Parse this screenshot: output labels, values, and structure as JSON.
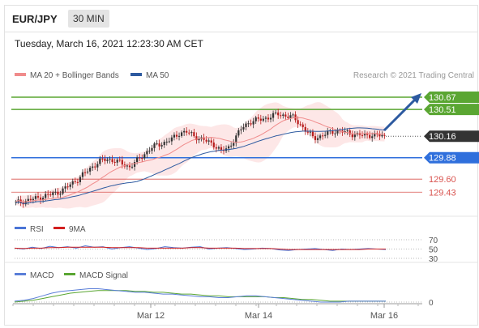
{
  "header": {
    "symbol": "EUR/JPY",
    "timeframe": "30 MIN"
  },
  "datetime": "Tuesday, March 16, 2021 12:23:30 AM CET",
  "legend": {
    "ma20": "MA 20 + Bollinger Bands",
    "ma50": "MA 50",
    "rsi": "RSI",
    "rsi9": "9MA",
    "macd": "MACD",
    "macd_signal": "MACD Signal"
  },
  "credit": "Research © 2021 Trading Central",
  "colors": {
    "resistance": "#5aa632",
    "pivot": "#2f6fdc",
    "support": "#d9534f",
    "ma20": "#f08b8b",
    "ma50": "#2d5aa0",
    "band_fill": "#fde3e3",
    "candle_up": "#333333",
    "candle_down": "#b71c1c",
    "rsi": "#4a74d6",
    "rsi9": "#d21f1f",
    "macd": "#5a7ed8",
    "signal": "#5aa632",
    "last_price_tag": "#333333"
  },
  "chart_data": [
    {
      "type": "line",
      "title": "EUR/JPY 30 MIN",
      "x_labels": [
        "Mar 12",
        "Mar 14",
        "Mar 16"
      ],
      "ylim": [
        129.2,
        130.85
      ],
      "levels": [
        {
          "name": "resistance_2",
          "value": 130.67,
          "label": "130.67",
          "kind": "resistance"
        },
        {
          "name": "resistance_1",
          "value": 130.51,
          "label": "130.51",
          "kind": "resistance"
        },
        {
          "name": "last_price",
          "value": 130.16,
          "label": "130.16",
          "kind": "last"
        },
        {
          "name": "pivot",
          "value": 129.88,
          "label": "129.88",
          "kind": "pivot"
        },
        {
          "name": "support_1",
          "value": 129.6,
          "label": "129.60",
          "kind": "support"
        },
        {
          "name": "support_2",
          "value": 129.43,
          "label": "129.43",
          "kind": "support"
        }
      ],
      "close": [
        129.29,
        129.31,
        129.33,
        129.35,
        129.38,
        129.4,
        129.43,
        129.48,
        129.55,
        129.62,
        129.7,
        129.78,
        129.84,
        129.86,
        129.84,
        129.8,
        129.76,
        129.83,
        129.92,
        130.0,
        130.05,
        130.08,
        130.12,
        130.2,
        130.22,
        130.17,
        130.13,
        130.09,
        130.05,
        129.96,
        130.01,
        130.15,
        130.28,
        130.35,
        130.37,
        130.39,
        130.42,
        130.45,
        130.43,
        130.41,
        130.33,
        130.22,
        130.14,
        130.16,
        130.2,
        130.23,
        130.22,
        130.2,
        130.18,
        130.17,
        130.18,
        130.17,
        130.16
      ]
    },
    {
      "type": "line",
      "title": "RSI",
      "ylim": [
        30,
        70
      ],
      "ticks": [
        30,
        50,
        70
      ],
      "series": [
        {
          "name": "RSI",
          "values": [
            52,
            50,
            54,
            51,
            56,
            53,
            55,
            52,
            57,
            54,
            55,
            50,
            53,
            55,
            52,
            49,
            51,
            55,
            53,
            52,
            54,
            55,
            50,
            52,
            53,
            51,
            49,
            50,
            52,
            51,
            48,
            47,
            49,
            50,
            51,
            49,
            47,
            50,
            49,
            50,
            51,
            50,
            49
          ]
        },
        {
          "name": "9MA",
          "values": [
            52,
            51,
            52,
            52,
            53,
            53,
            54,
            54,
            54,
            54,
            54,
            53,
            53,
            53,
            53,
            52,
            52,
            52,
            52,
            52,
            53,
            53,
            52,
            52,
            52,
            52,
            51,
            51,
            51,
            51,
            50,
            49,
            49,
            49,
            49,
            49,
            49,
            49,
            49,
            49,
            50,
            50,
            50
          ]
        }
      ]
    },
    {
      "type": "line",
      "title": "MACD",
      "ticks": [
        0
      ],
      "series": [
        {
          "name": "MACD",
          "values": [
            0.01,
            0.02,
            0.04,
            0.07,
            0.1,
            0.12,
            0.13,
            0.14,
            0.15,
            0.15,
            0.14,
            0.13,
            0.12,
            0.11,
            0.11,
            0.1,
            0.09,
            0.09,
            0.08,
            0.07,
            0.06,
            0.06,
            0.05,
            0.05,
            0.06,
            0.07,
            0.07,
            0.06,
            0.05,
            0.04,
            0.03,
            0.02,
            0.01,
            0.0,
            0.0,
            0.0,
            0.01,
            0.01,
            0.01,
            0.01,
            0.01
          ]
        },
        {
          "name": "MACD Signal",
          "values": [
            0.0,
            0.01,
            0.02,
            0.04,
            0.06,
            0.08,
            0.1,
            0.11,
            0.12,
            0.13,
            0.13,
            0.13,
            0.13,
            0.12,
            0.12,
            0.11,
            0.11,
            0.1,
            0.09,
            0.09,
            0.08,
            0.07,
            0.07,
            0.06,
            0.06,
            0.06,
            0.06,
            0.06,
            0.05,
            0.05,
            0.04,
            0.03,
            0.03,
            0.02,
            0.01,
            0.01,
            0.01,
            0.01,
            0.01,
            0.01,
            0.01
          ]
        }
      ]
    }
  ]
}
